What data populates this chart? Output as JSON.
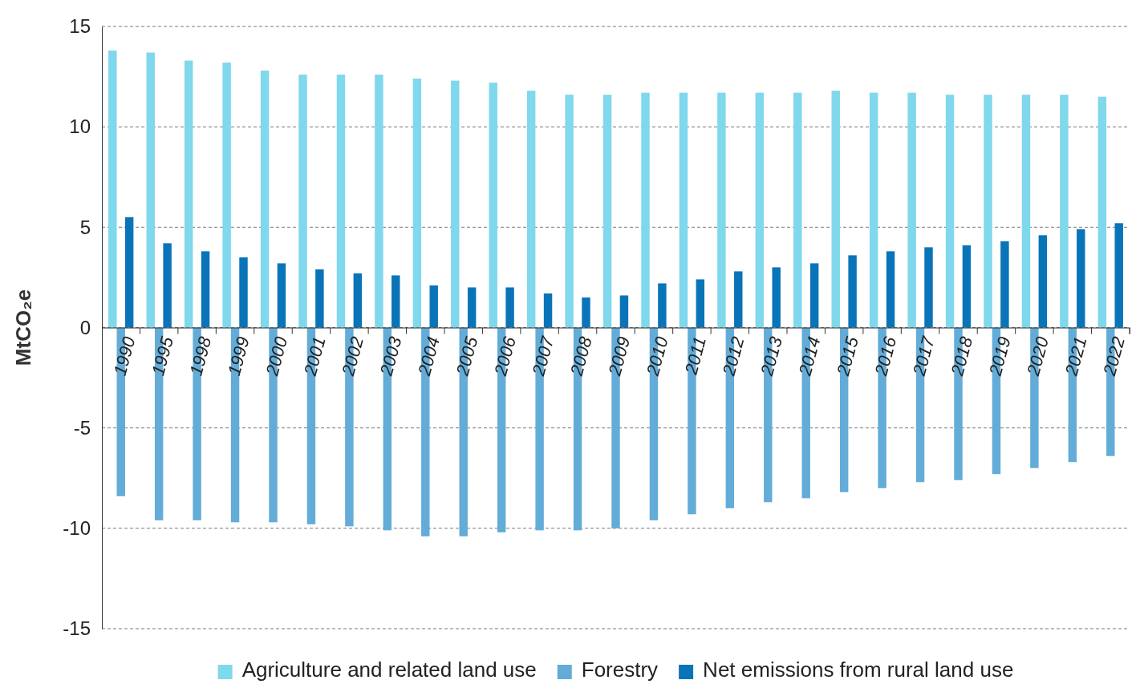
{
  "chart_data": {
    "type": "bar",
    "ylabel": "MtCO₂e",
    "categories": [
      "1990",
      "1995",
      "1998",
      "1999",
      "2000",
      "2001",
      "2002",
      "2003",
      "2004",
      "2005",
      "2006",
      "2007",
      "2008",
      "2009",
      "2010",
      "2011",
      "2012",
      "2013",
      "2014",
      "2015",
      "2016",
      "2017",
      "2018",
      "2019",
      "2020",
      "2021",
      "2022"
    ],
    "series": [
      {
        "name": "Agriculture and related land use",
        "color": "#7fd8ec",
        "values": [
          13.8,
          13.7,
          13.3,
          13.2,
          12.8,
          12.6,
          12.6,
          12.6,
          12.4,
          12.3,
          12.2,
          11.8,
          11.6,
          11.6,
          11.7,
          11.7,
          11.7,
          11.7,
          11.7,
          11.8,
          11.7,
          11.7,
          11.6,
          11.6,
          11.6,
          11.6,
          11.5
        ]
      },
      {
        "name": "Forestry",
        "color": "#63acd8",
        "values": [
          -8.4,
          -9.6,
          -9.6,
          -9.7,
          -9.7,
          -9.8,
          -9.9,
          -10.1,
          -10.4,
          -10.4,
          -10.2,
          -10.1,
          -10.1,
          -10.0,
          -9.6,
          -9.3,
          -9.0,
          -8.7,
          -8.5,
          -8.2,
          -8.0,
          -7.7,
          -7.6,
          -7.3,
          -7.0,
          -6.7,
          -6.4
        ]
      },
      {
        "name": "Net emissions from rural land use",
        "color": "#0a74b9",
        "values": [
          5.5,
          4.2,
          3.8,
          3.5,
          3.2,
          2.9,
          2.7,
          2.6,
          2.1,
          2.0,
          2.0,
          1.7,
          1.5,
          1.6,
          2.2,
          2.4,
          2.8,
          3.0,
          3.2,
          3.6,
          3.8,
          4.0,
          4.1,
          4.3,
          4.6,
          4.9,
          5.2
        ]
      }
    ],
    "ylim": [
      -15,
      15
    ],
    "yticks": [
      -15,
      -10,
      -5,
      0,
      5,
      10,
      15
    ],
    "grid": "y",
    "legend": "bottom"
  }
}
